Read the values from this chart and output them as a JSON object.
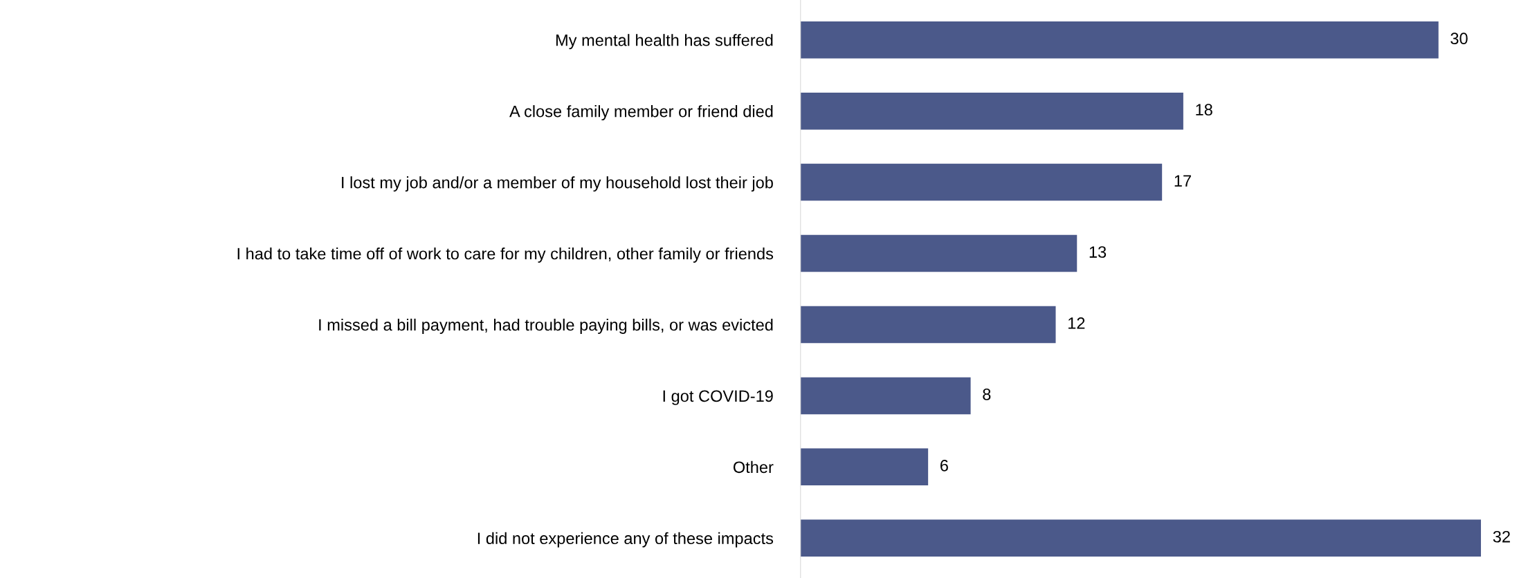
{
  "chart_data": {
    "type": "bar",
    "orientation": "horizontal",
    "categories": [
      "My mental health has suffered",
      "A close family member or friend died",
      "I lost my job and/or a member of my household lost their job",
      "I had to take time off of work to care for my children, other family or friends",
      "I missed a bill payment, had trouble paying bills, or was evicted",
      "I got COVID-19",
      "Other",
      "I did not experience any of these impacts"
    ],
    "values": [
      30,
      18,
      17,
      13,
      12,
      8,
      6,
      32
    ],
    "color": "#4b598a",
    "data_labels": true
  }
}
